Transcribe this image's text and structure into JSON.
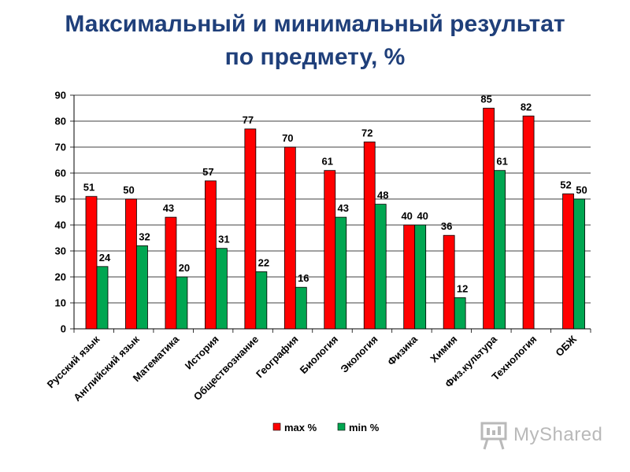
{
  "chart_data": {
    "type": "bar",
    "title_line1": "Максимальный и минимальный результат",
    "title_line2": "по предмету, %",
    "categories": [
      "Русский язык",
      "Английский язык",
      "Математика",
      "История",
      "Обществознание",
      "География",
      "Биология",
      "Экология",
      "Физика",
      "Химия",
      "Физ.культура",
      "Технология",
      "ОБЖ"
    ],
    "series": [
      {
        "name": "max %",
        "color": "#ff0000",
        "values": [
          51,
          50,
          43,
          57,
          77,
          70,
          61,
          72,
          40,
          36,
          85,
          82,
          52
        ]
      },
      {
        "name": "min %",
        "color": "#00a651",
        "values": [
          24,
          32,
          20,
          31,
          22,
          16,
          43,
          48,
          40,
          12,
          61,
          null,
          50
        ]
      }
    ],
    "ylim": [
      0,
      90
    ],
    "yticks": [
      0,
      10,
      20,
      30,
      40,
      50,
      60,
      70,
      80,
      90
    ],
    "grid": true,
    "legend_position": "bottom"
  },
  "watermark": {
    "text": "MyShared",
    "icon": "presentation-board-icon",
    "color": "#b9b9b9"
  }
}
